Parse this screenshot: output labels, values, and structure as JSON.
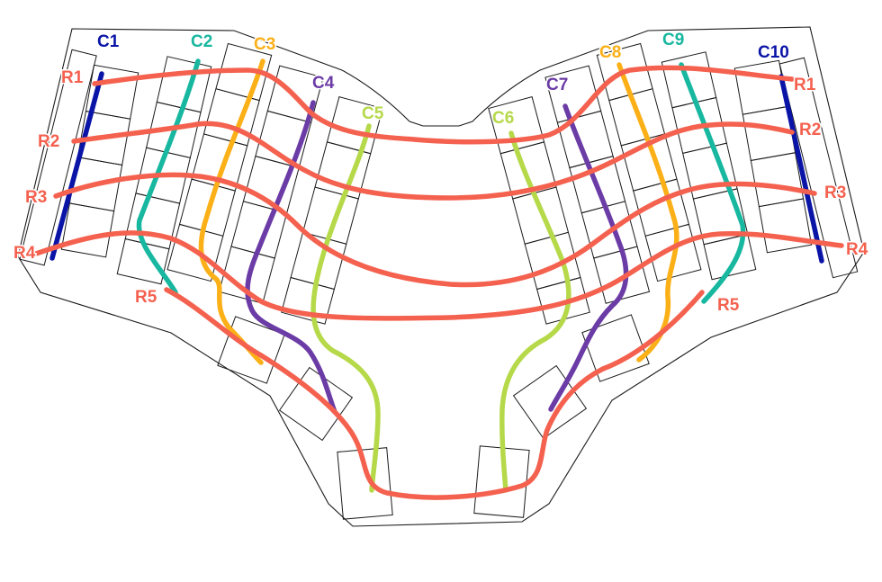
{
  "colors": {
    "row": "#f4614f",
    "col1": "#0a14a6",
    "col2": "#17b7a0",
    "col3": "#fbb017",
    "col4": "#6b3ba6",
    "col5": "#b6d94a"
  },
  "columns": [
    {
      "id": "C1",
      "label": "C1",
      "color": "#0a14a6"
    },
    {
      "id": "C2",
      "label": "C2",
      "color": "#17b7a0"
    },
    {
      "id": "C3",
      "label": "C3",
      "color": "#fbb017"
    },
    {
      "id": "C4",
      "label": "C4",
      "color": "#6b3ba6"
    },
    {
      "id": "C5",
      "label": "C5",
      "color": "#b6d94a"
    },
    {
      "id": "C6",
      "label": "C6",
      "color": "#b6d94a"
    },
    {
      "id": "C7",
      "label": "C7",
      "color": "#6b3ba6"
    },
    {
      "id": "C8",
      "label": "C8",
      "color": "#fbb017"
    },
    {
      "id": "C9",
      "label": "C9",
      "color": "#17b7a0"
    },
    {
      "id": "C10",
      "label": "C10",
      "color": "#0a14a6"
    }
  ],
  "rows_left": [
    {
      "id": "R1",
      "label": "R1"
    },
    {
      "id": "R2",
      "label": "R2"
    },
    {
      "id": "R3",
      "label": "R3"
    },
    {
      "id": "R4",
      "label": "R4"
    },
    {
      "id": "R5",
      "label": "R5"
    }
  ],
  "rows_right": [
    {
      "id": "R1",
      "label": "R1"
    },
    {
      "id": "R2",
      "label": "R2"
    },
    {
      "id": "R3",
      "label": "R3"
    },
    {
      "id": "R4",
      "label": "R4"
    },
    {
      "id": "R5",
      "label": "R5"
    }
  ]
}
